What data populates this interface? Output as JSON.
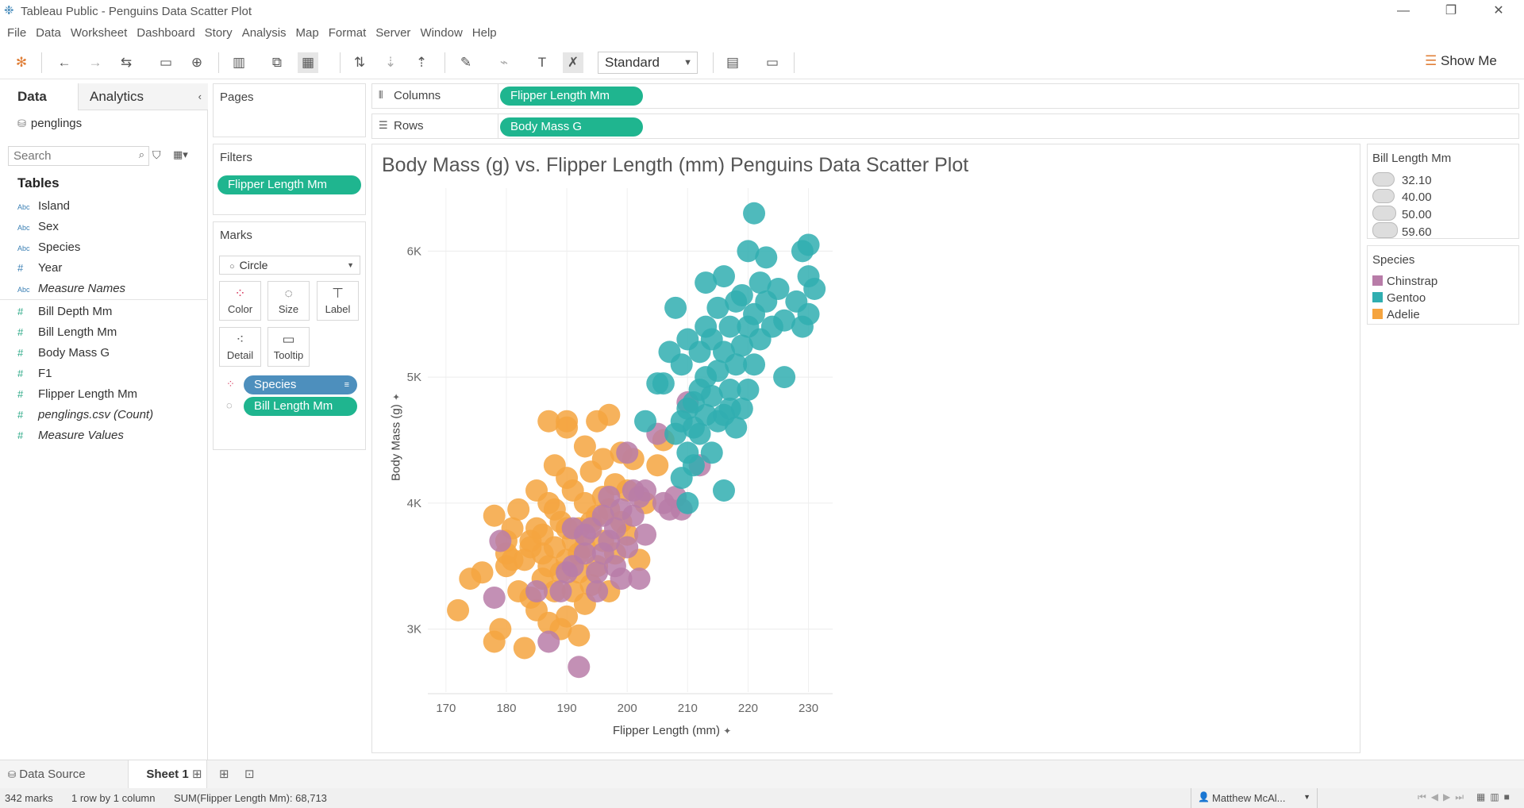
{
  "window": {
    "title": "Tableau Public - Penguins Data Scatter Plot"
  },
  "menu": [
    "File",
    "Data",
    "Worksheet",
    "Dashboard",
    "Story",
    "Analysis",
    "Map",
    "Format",
    "Server",
    "Window",
    "Help"
  ],
  "toolbar": {
    "fit_value": "Standard",
    "show_me_label": "Show Me"
  },
  "data_pane": {
    "tab_data": "Data",
    "tab_analytics": "Analytics",
    "datasource": "penglings",
    "search_placeholder": "Search",
    "tables_heading": "Tables",
    "dimensions": [
      {
        "type": "Abc",
        "name": "Island"
      },
      {
        "type": "Abc",
        "name": "Sex"
      },
      {
        "type": "Abc",
        "name": "Species"
      },
      {
        "type": "#",
        "name": "Year"
      },
      {
        "type": "Abc",
        "name": "Measure Names"
      }
    ],
    "measures": [
      {
        "type": "#",
        "name": "Bill Depth Mm"
      },
      {
        "type": "#",
        "name": "Bill Length Mm"
      },
      {
        "type": "#",
        "name": "Body Mass G"
      },
      {
        "type": "#",
        "name": "F1"
      },
      {
        "type": "#",
        "name": "Flipper Length Mm"
      },
      {
        "type": "#",
        "name": "penglings.csv (Count)"
      },
      {
        "type": "#",
        "name": "Measure Values"
      }
    ]
  },
  "shelves": {
    "pages_label": "Pages",
    "filters_label": "Filters",
    "filter_pill": "Flipper Length Mm",
    "columns_label": "Columns",
    "columns_pill": "Flipper Length Mm",
    "rows_label": "Rows",
    "rows_pill": "Body Mass G"
  },
  "marks": {
    "label": "Marks",
    "type": "Circle",
    "buttons": [
      "Color",
      "Size",
      "Label",
      "Detail",
      "Tooltip"
    ],
    "color_pill": "Species",
    "size_pill": "Bill Length Mm"
  },
  "legends": {
    "size_title": "Bill Length Mm",
    "size_items": [
      "32.10",
      "40.00",
      "50.00",
      "59.60"
    ],
    "species_title": "Species",
    "species_items": [
      {
        "name": "Chinstrap",
        "color": "#b87ca8"
      },
      {
        "name": "Gentoo",
        "color": "#30aeb0"
      },
      {
        "name": "Adelie",
        "color": "#f5a43f"
      }
    ]
  },
  "sheets": {
    "data_source": "Data Source",
    "active_sheet": "Sheet 1"
  },
  "status": {
    "marks": "342 marks",
    "dims": "1 row by 1 column",
    "sum": "SUM(Flipper Length Mm): 68,713",
    "user": "Matthew McAl..."
  },
  "chart_data": {
    "type": "scatter",
    "title": "Body Mass (g) vs. Flipper Length (mm) Penguins Data Scatter Plot",
    "xlabel": "Flipper Length (mm)",
    "ylabel": "Body Mass (g)",
    "xlim": [
      167,
      234
    ],
    "ylim": [
      2500,
      6500
    ],
    "xticks": [
      170,
      180,
      190,
      200,
      210,
      220,
      230
    ],
    "yticks": [
      {
        "value": 3000,
        "label": "3K"
      },
      {
        "value": 4000,
        "label": "4K"
      },
      {
        "value": 5000,
        "label": "5K"
      },
      {
        "value": 6000,
        "label": "6K"
      }
    ],
    "grid": true,
    "series": [
      {
        "name": "Adelie",
        "color": "#f5a43f",
        "points": [
          [
            172,
            3150
          ],
          [
            174,
            3400
          ],
          [
            176,
            3450
          ],
          [
            178,
            3900
          ],
          [
            178,
            2900
          ],
          [
            179,
            3000
          ],
          [
            180,
            3600
          ],
          [
            180,
            3700
          ],
          [
            181,
            3800
          ],
          [
            181,
            3550
          ],
          [
            182,
            3950
          ],
          [
            182,
            3300
          ],
          [
            183,
            2850
          ],
          [
            183,
            3550
          ],
          [
            184,
            3250
          ],
          [
            184,
            3650
          ],
          [
            185,
            3800
          ],
          [
            185,
            4100
          ],
          [
            185,
            3150
          ],
          [
            186,
            3400
          ],
          [
            186,
            3750
          ],
          [
            187,
            3050
          ],
          [
            187,
            3500
          ],
          [
            187,
            4000
          ],
          [
            188,
            3300
          ],
          [
            188,
            3650
          ],
          [
            188,
            4300
          ],
          [
            189,
            3000
          ],
          [
            189,
            3450
          ],
          [
            189,
            3850
          ],
          [
            190,
            3100
          ],
          [
            190,
            3550
          ],
          [
            190,
            4200
          ],
          [
            190,
            4600
          ],
          [
            191,
            3300
          ],
          [
            191,
            3700
          ],
          [
            191,
            4100
          ],
          [
            192,
            2950
          ],
          [
            192,
            3450
          ],
          [
            192,
            3800
          ],
          [
            193,
            3200
          ],
          [
            193,
            3650
          ],
          [
            193,
            4000
          ],
          [
            193,
            4450
          ],
          [
            194,
            3350
          ],
          [
            194,
            3850
          ],
          [
            194,
            4250
          ],
          [
            195,
            3500
          ],
          [
            195,
            3900
          ],
          [
            195,
            4650
          ],
          [
            196,
            3700
          ],
          [
            196,
            4050
          ],
          [
            196,
            4350
          ],
          [
            197,
            3300
          ],
          [
            197,
            3950
          ],
          [
            197,
            4700
          ],
          [
            198,
            3600
          ],
          [
            198,
            4150
          ],
          [
            199,
            3850
          ],
          [
            199,
            4400
          ],
          [
            200,
            3750
          ],
          [
            200,
            4100
          ],
          [
            201,
            4350
          ],
          [
            202,
            3550
          ],
          [
            203,
            4000
          ],
          [
            205,
            4300
          ],
          [
            206,
            4500
          ],
          [
            180,
            3500
          ],
          [
            184,
            3700
          ],
          [
            186,
            3600
          ],
          [
            188,
            3950
          ],
          [
            190,
            3800
          ],
          [
            192,
            3600
          ],
          [
            187,
            4650
          ],
          [
            190,
            4650
          ]
        ]
      },
      {
        "name": "Chinstrap",
        "color": "#b87ca8",
        "points": [
          [
            178,
            3250
          ],
          [
            179,
            3700
          ],
          [
            185,
            3300
          ],
          [
            187,
            2900
          ],
          [
            189,
            3300
          ],
          [
            190,
            3450
          ],
          [
            191,
            3500
          ],
          [
            191,
            3800
          ],
          [
            192,
            2700
          ],
          [
            193,
            3600
          ],
          [
            193,
            3750
          ],
          [
            194,
            3800
          ],
          [
            195,
            3450
          ],
          [
            195,
            3300
          ],
          [
            196,
            3600
          ],
          [
            196,
            3900
          ],
          [
            197,
            3700
          ],
          [
            197,
            4050
          ],
          [
            198,
            3500
          ],
          [
            198,
            3800
          ],
          [
            199,
            3400
          ],
          [
            199,
            3950
          ],
          [
            200,
            3650
          ],
          [
            200,
            4400
          ],
          [
            201,
            3900
          ],
          [
            201,
            4100
          ],
          [
            202,
            4050
          ],
          [
            202,
            3400
          ],
          [
            203,
            3750
          ],
          [
            203,
            4100
          ],
          [
            205,
            4550
          ],
          [
            206,
            4000
          ],
          [
            207,
            3950
          ],
          [
            208,
            4050
          ],
          [
            209,
            3950
          ],
          [
            210,
            4800
          ],
          [
            212,
            4300
          ]
        ]
      },
      {
        "name": "Gentoo",
        "color": "#30aeb0",
        "points": [
          [
            203,
            4650
          ],
          [
            206,
            4950
          ],
          [
            207,
            5200
          ],
          [
            208,
            4550
          ],
          [
            208,
            5550
          ],
          [
            209,
            4200
          ],
          [
            209,
            4650
          ],
          [
            209,
            5100
          ],
          [
            210,
            4000
          ],
          [
            210,
            4400
          ],
          [
            210,
            4750
          ],
          [
            210,
            5300
          ],
          [
            211,
            4300
          ],
          [
            211,
            4800
          ],
          [
            212,
            4550
          ],
          [
            212,
            4900
          ],
          [
            212,
            5200
          ],
          [
            213,
            4700
          ],
          [
            213,
            5000
          ],
          [
            213,
            5750
          ],
          [
            214,
            4400
          ],
          [
            214,
            4850
          ],
          [
            214,
            5300
          ],
          [
            215,
            4650
          ],
          [
            215,
            5050
          ],
          [
            215,
            5550
          ],
          [
            216,
            4100
          ],
          [
            216,
            4700
          ],
          [
            216,
            5200
          ],
          [
            216,
            5800
          ],
          [
            217,
            4900
          ],
          [
            217,
            5400
          ],
          [
            218,
            4600
          ],
          [
            218,
            5100
          ],
          [
            218,
            5600
          ],
          [
            219,
            4750
          ],
          [
            219,
            5250
          ],
          [
            219,
            5650
          ],
          [
            220,
            4900
          ],
          [
            220,
            5400
          ],
          [
            220,
            6000
          ],
          [
            221,
            5100
          ],
          [
            221,
            5500
          ],
          [
            221,
            6300
          ],
          [
            222,
            5300
          ],
          [
            222,
            5750
          ],
          [
            223,
            5600
          ],
          [
            223,
            5950
          ],
          [
            224,
            5400
          ],
          [
            225,
            5700
          ],
          [
            226,
            5000
          ],
          [
            226,
            5450
          ],
          [
            228,
            5600
          ],
          [
            229,
            5400
          ],
          [
            229,
            6000
          ],
          [
            230,
            5800
          ],
          [
            230,
            5500
          ],
          [
            230,
            6050
          ],
          [
            231,
            5700
          ],
          [
            213,
            5400
          ],
          [
            217,
            4750
          ],
          [
            211,
            4600
          ],
          [
            205,
            4950
          ]
        ]
      }
    ]
  }
}
